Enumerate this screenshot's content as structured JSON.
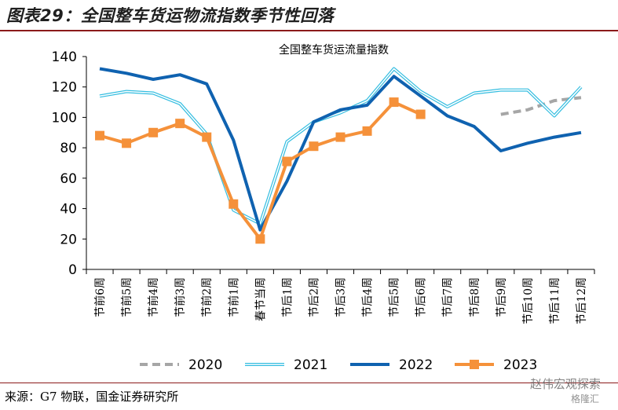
{
  "figure": {
    "title": "图表29：全国整车货运物流指数季节性回落",
    "source": "来源：G7 物联，国金证券研究所",
    "watermark_main": "赵伟宏观探索",
    "watermark_sub": "格隆汇"
  },
  "chart_data": {
    "type": "line",
    "title": "全国整车货运流量指数",
    "xlabel": "",
    "ylabel": "",
    "ylim": [
      0,
      140
    ],
    "yticks": [
      0,
      20,
      40,
      60,
      80,
      100,
      120,
      140
    ],
    "grid": false,
    "legend_position": "bottom",
    "categories": [
      "节前6周",
      "节前5周",
      "节前4周",
      "节前3周",
      "节前2周",
      "节前1周",
      "春节当周",
      "节后1周",
      "节后2周",
      "节后3周",
      "节后4周",
      "节后5周",
      "节后6周",
      "节后7周",
      "节后8周",
      "节后9周",
      "节后10周",
      "节后11周",
      "节后12周"
    ],
    "series": [
      {
        "name": "2020",
        "color": "#a6a6a6",
        "style": "dashed",
        "marker": "none",
        "values": [
          null,
          null,
          null,
          null,
          null,
          null,
          null,
          null,
          null,
          null,
          null,
          null,
          null,
          null,
          null,
          102,
          105,
          111,
          113
        ]
      },
      {
        "name": "2021",
        "color": "#33bde0",
        "style": "double",
        "marker": "none",
        "values": [
          114,
          117,
          116,
          109,
          89,
          39,
          30,
          84,
          97,
          103,
          111,
          132,
          117,
          107,
          116,
          118,
          118,
          101,
          120
        ]
      },
      {
        "name": "2022",
        "color": "#0f62b0",
        "style": "solid",
        "marker": "none",
        "values": [
          132,
          129,
          125,
          128,
          122,
          85,
          26,
          58,
          97,
          105,
          108,
          127,
          114,
          101,
          94,
          78,
          83,
          87,
          90
        ]
      },
      {
        "name": "2023",
        "color": "#f5913a",
        "style": "solid",
        "marker": "square",
        "values": [
          88,
          83,
          90,
          96,
          87,
          43,
          20,
          71,
          81,
          87,
          91,
          110,
          102,
          null,
          null,
          null,
          null,
          null,
          null
        ]
      }
    ]
  }
}
